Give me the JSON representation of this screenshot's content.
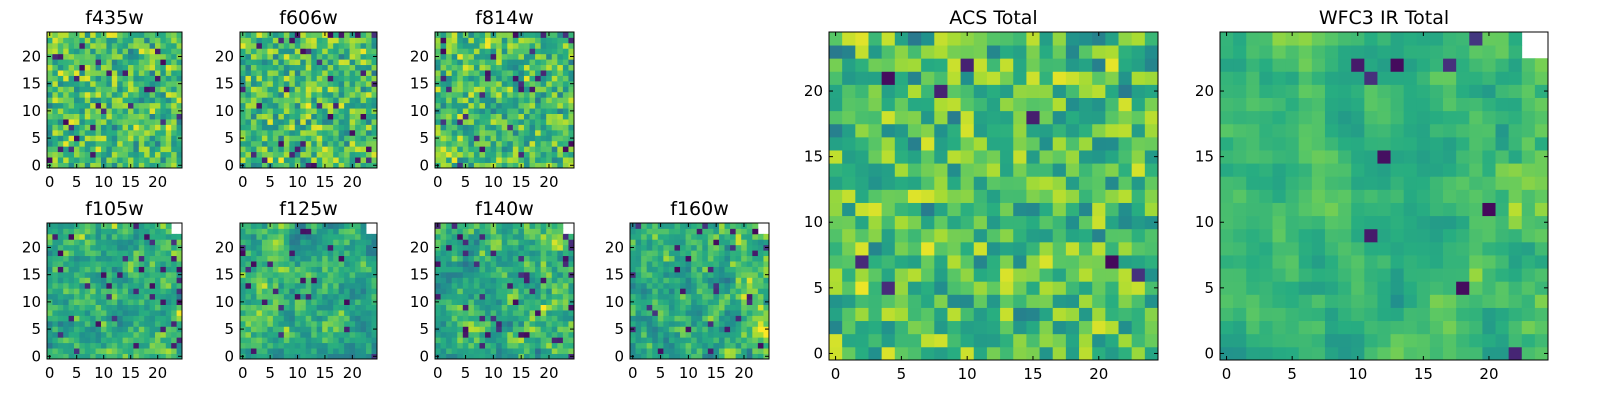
{
  "chart_data": [
    {
      "type": "heatmap",
      "title": "f435w",
      "size": 25,
      "xticks": [
        0,
        5,
        10,
        15,
        20
      ],
      "yticks": [
        0,
        5,
        10,
        15,
        20
      ],
      "colormap": "viridis",
      "pattern": "noise",
      "seed": 11,
      "low_prob": 0.04
    },
    {
      "type": "heatmap",
      "title": "f606w",
      "size": 25,
      "xticks": [
        0,
        5,
        10,
        15,
        20
      ],
      "yticks": [
        0,
        5,
        10,
        15,
        20
      ],
      "colormap": "viridis",
      "pattern": "noise",
      "seed": 23,
      "low_prob": 0.04
    },
    {
      "type": "heatmap",
      "title": "f814w",
      "size": 25,
      "xticks": [
        0,
        5,
        10,
        15,
        20
      ],
      "yticks": [
        0,
        5,
        10,
        15,
        20
      ],
      "colormap": "viridis",
      "pattern": "noise",
      "seed": 37,
      "low_prob": 0.05
    },
    {
      "type": "heatmap",
      "title": "f105w",
      "size": 25,
      "xticks": [
        0,
        5,
        10,
        15,
        20
      ],
      "yticks": [
        0,
        5,
        10,
        15,
        20
      ],
      "colormap": "viridis",
      "pattern": "blotchy",
      "seed": 41,
      "low_prob": 0.06,
      "masked_corner": "top-right"
    },
    {
      "type": "heatmap",
      "title": "f125w",
      "size": 25,
      "xticks": [
        0,
        5,
        10,
        15,
        20
      ],
      "yticks": [
        0,
        5,
        10,
        15,
        20
      ],
      "colormap": "viridis",
      "pattern": "blotchy",
      "seed": 53,
      "low_prob": 0.05,
      "masked_corner": "top-right"
    },
    {
      "type": "heatmap",
      "title": "f140w",
      "size": 25,
      "xticks": [
        0,
        5,
        10,
        15,
        20
      ],
      "yticks": [
        0,
        5,
        10,
        15,
        20
      ],
      "colormap": "viridis",
      "pattern": "blotchy",
      "seed": 67,
      "low_prob": 0.05,
      "masked_corner": "top-right",
      "bright_right": true
    },
    {
      "type": "heatmap",
      "title": "f160w",
      "size": 25,
      "xticks": [
        0,
        5,
        10,
        15,
        20
      ],
      "yticks": [
        0,
        5,
        10,
        15,
        20
      ],
      "colormap": "viridis",
      "pattern": "blotchy",
      "seed": 79,
      "low_prob": 0.05,
      "masked_corner": "top-right",
      "bright_right": true
    },
    {
      "type": "heatmap",
      "title": "ACS Total",
      "size": 25,
      "xticks": [
        0,
        5,
        10,
        15,
        20
      ],
      "yticks": [
        0,
        5,
        10,
        15,
        20
      ],
      "colormap": "viridis",
      "pattern": "noise",
      "seed": 97,
      "low_prob": 0.02
    },
    {
      "type": "heatmap",
      "title": "WFC3 IR Total",
      "size": 25,
      "xticks": [
        0,
        5,
        10,
        15,
        20
      ],
      "yticks": [
        0,
        5,
        10,
        15,
        20
      ],
      "colormap": "viridis",
      "pattern": "smooth",
      "seed": 131,
      "low_prob": 0.02,
      "masked_corner": "top-right",
      "bright_right": true
    }
  ]
}
